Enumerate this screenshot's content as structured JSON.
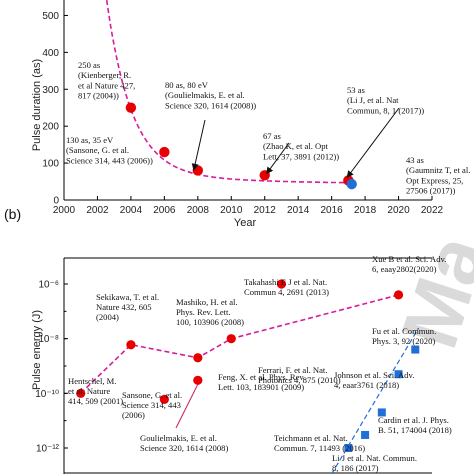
{
  "watermark": "Ma",
  "chart_data": [
    {
      "type": "scatter",
      "panel_label": "",
      "xlabel": "Year",
      "ylabel": "Pulse duration (as)",
      "xlim": [
        2000,
        2022
      ],
      "ylim": [
        0,
        550
      ],
      "xticks": [
        "2000",
        "2002",
        "2004",
        "2006",
        "2008",
        "2010",
        "2012",
        "2014",
        "2016",
        "2018",
        "2020",
        "2022"
      ],
      "yticks": [
        "0",
        "100",
        "200",
        "300",
        "400",
        "500"
      ],
      "trend_color": "#d81b9c",
      "series": [
        {
          "color": "#e60000",
          "points": [
            {
              "x": 2004,
              "y": 250
            },
            {
              "x": 2006,
              "y": 130
            },
            {
              "x": 2008,
              "y": 80
            },
            {
              "x": 2012,
              "y": 67
            },
            {
              "x": 2017,
              "y": 53
            }
          ]
        },
        {
          "color": "#1f6fd6",
          "points": [
            {
              "x": 2017.2,
              "y": 43
            }
          ]
        }
      ],
      "annotations": [
        {
          "lines": [
            "250 as",
            "(Kienberger, R.",
            "et al Nature 427,",
            "817 (2004))"
          ]
        },
        {
          "lines": [
            "130 as, 35 eV",
            "(Sansone, G. et al.",
            "Science 314, 443 (2006))"
          ]
        },
        {
          "lines": [
            "80 as, 80 eV",
            "(Goulielmakis, E. et al.",
            "Science 320, 1614 (2008))"
          ]
        },
        {
          "lines": [
            "67 as",
            "(Zhao K, et al. Opt",
            "Lett, 37, 3891 (2012))"
          ]
        },
        {
          "lines": [
            "53 as",
            "(Li J, et al. Nat",
            "Commun, 8, 1 (2017))"
          ]
        },
        {
          "lines": [
            "43 as",
            "(Gaumnitz T, et al.",
            "Opt Express, 25,",
            "27506 (2017))"
          ]
        }
      ]
    },
    {
      "type": "scatter",
      "panel_label": "(b)",
      "xlabel": "",
      "ylabel": "Pulse energy (J)",
      "yscale": "log",
      "yticks": [
        "10⁻⁶",
        "10⁻⁸",
        "10⁻¹⁰",
        "10⁻¹²"
      ],
      "trend_color": "#d81b9c",
      "blue_trend_color": "#1f6fd6",
      "series": [
        {
          "color": "#e60000",
          "points": [
            {
              "x": 2001,
              "y": "1e-10"
            },
            {
              "x": 2004,
              "y": "6e-9"
            },
            {
              "x": 2006,
              "y": "6e-11"
            },
            {
              "x": 2008,
              "y": "3e-10"
            },
            {
              "x": 2008,
              "y": "2e-9"
            },
            {
              "x": 2010,
              "y": "1e-8"
            },
            {
              "x": 2013,
              "y": "1e-6"
            },
            {
              "x": 2020,
              "y": "4e-7"
            }
          ]
        },
        {
          "color": "#1f6fd6",
          "points": [
            {
              "x": 2017,
              "y": "1e-12"
            },
            {
              "x": 2018,
              "y": "3e-12"
            },
            {
              "x": 2019,
              "y": "2e-11"
            },
            {
              "x": 2020,
              "y": "5e-10"
            },
            {
              "x": 2021,
              "y": "4e-9"
            }
          ]
        }
      ],
      "annotations": [
        {
          "lines": [
            "Hentschel, M.",
            "et al. Nature",
            "414, 509 (2001)"
          ],
          "underline": "Hentschel"
        },
        {
          "lines": [
            "Sekikawa, T. et al.",
            "Nature 432, 605",
            "(2004)"
          ],
          "underline": "Sekikawa"
        },
        {
          "lines": [
            "Sansone, G. et al.",
            "Science 314, 443",
            "(2006)"
          ],
          "underline": "Sansone"
        },
        {
          "lines": [
            "Goulielmakis, E. et al.",
            "Science 320, 1614 (2008)"
          ],
          "underline": "Goulielmakis"
        },
        {
          "lines": [
            "Mashiko, H. et al.",
            "Phys. Rev. Lett.",
            "100, 103906 (2008)"
          ],
          "underline": "Mashiko"
        },
        {
          "lines": [
            "Feng, X. et al. Phys. Rev.",
            "Lett. 103, 183901 (2009)"
          ],
          "underline": "Feng"
        },
        {
          "lines": [
            "Ferrari, F. et al. Nat.",
            "Photonics 4, 875 (2010)"
          ],
          "underline": "Ferrari"
        },
        {
          "lines": [
            "Takahashi E J et al. Nat.",
            "Commun 4, 2691 (2013)"
          ],
          "underline": "Takahashi"
        },
        {
          "lines": [
            "Xue B et al. Sci. Adv.",
            "6, eaay2802(2020)"
          ],
          "underline": "Xue"
        },
        {
          "lines": [
            "Fu et al. Commun.",
            "Phys. 3, 92 (2020)"
          ],
          "underline": "Fu"
        },
        {
          "lines": [
            "Johnson et al. Sci. Adv.",
            "4, eaar3761 (2018)"
          ],
          "underline": "Johnson"
        },
        {
          "lines": [
            "Teichmann et al. Nat.",
            "Commun. 7, 11493 (2016)"
          ],
          "underline": "Teichmann"
        },
        {
          "lines": [
            "Cardin et al. J. Phys.",
            "B. 51, 174004 (2018)"
          ],
          "underline": "Cardin"
        },
        {
          "lines": [
            "Li J et al. Nat. Commun.",
            "8, 186 (2017)"
          ],
          "underline": "Li"
        }
      ]
    }
  ]
}
